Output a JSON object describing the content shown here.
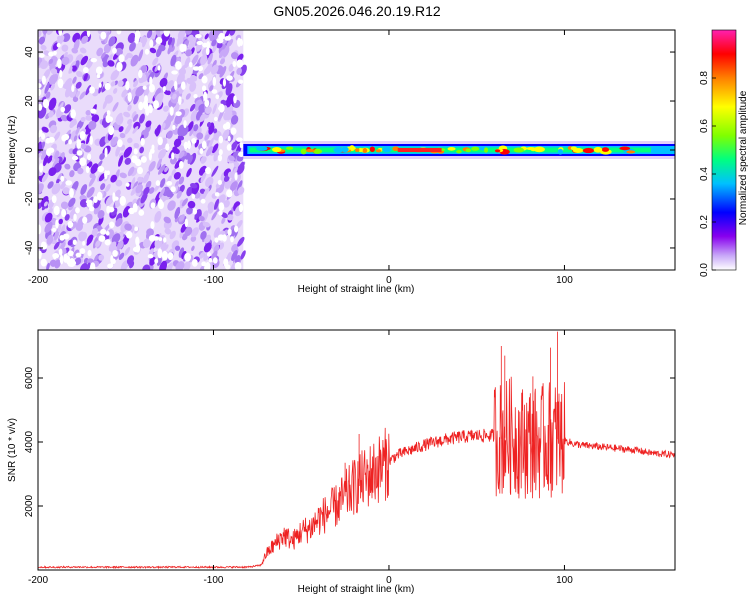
{
  "title": "GN05.2026.046.20.19.R12",
  "chart_data": [
    {
      "type": "heatmap",
      "name": "spectrogram",
      "xlabel": "Height of straight line (km)",
      "ylabel": "Frequency (Hz)",
      "xlim": [
        -200,
        163
      ],
      "ylim": [
        -49,
        49
      ],
      "xticks": [
        -200,
        -100,
        0,
        100
      ],
      "xtick_labels": [
        "-200",
        "-100",
        "0",
        "100"
      ],
      "yticks": [
        -40,
        -20,
        0,
        20,
        40
      ],
      "ytick_labels": [
        "-40",
        "-20",
        "0",
        "20",
        "40"
      ],
      "noise_region_km": [
        -200,
        -83
      ],
      "signal_region_km": [
        -83,
        163
      ],
      "signal_band_hz": [
        -3,
        3
      ],
      "colorbar": {
        "label": "Normalized spectral amplitude",
        "range": [
          0.0,
          1.0
        ],
        "ticks": [
          0.0,
          0.2,
          0.4,
          0.6,
          0.8
        ],
        "tick_labels": [
          "0.0",
          "0.2",
          "0.4",
          "0.6",
          "0.8"
        ],
        "colormap": [
          "#ffffff",
          "#c8a8f8",
          "#8800ee",
          "#0000ff",
          "#00c0ff",
          "#00ff80",
          "#80ff00",
          "#ffff00",
          "#ff8000",
          "#ff0000",
          "#ff20b0"
        ]
      }
    },
    {
      "type": "line",
      "name": "snr",
      "xlabel": "Height of straight line (km)",
      "ylabel": "SNR (10 * v/v)",
      "xlim": [
        -200,
        163
      ],
      "ylim": [
        0,
        7500
      ],
      "xticks": [
        -200,
        -100,
        0,
        100
      ],
      "xtick_labels": [
        "-200",
        "-100",
        "0",
        "100"
      ],
      "yticks": [
        2000,
        4000,
        6000
      ],
      "ytick_labels": [
        "2000",
        "4000",
        "6000"
      ],
      "color": "#ee2222",
      "series": [
        {
          "name": "SNR",
          "x": [
            -200,
            -190,
            -180,
            -170,
            -160,
            -150,
            -140,
            -130,
            -120,
            -110,
            -100,
            -90,
            -80,
            -73,
            -70,
            -65,
            -60,
            -55,
            -50,
            -45,
            -40,
            -35,
            -30,
            -25,
            -20,
            -15,
            -10,
            -5,
            0,
            5,
            10,
            20,
            30,
            40,
            50,
            60,
            64,
            70,
            75,
            80,
            85,
            90,
            95,
            100,
            105,
            110,
            120,
            130,
            140,
            150,
            163
          ],
          "y": [
            90,
            85,
            95,
            90,
            88,
            92,
            90,
            87,
            93,
            90,
            88,
            91,
            92,
            150,
            500,
            800,
            1100,
            900,
            1200,
            1300,
            1600,
            1800,
            2000,
            2300,
            2600,
            2800,
            3000,
            3200,
            3400,
            3600,
            3700,
            3900,
            4050,
            4150,
            4200,
            4200,
            4100,
            4200,
            4000,
            4050,
            3950,
            4100,
            4100,
            4050,
            3950,
            3900,
            3850,
            3800,
            3750,
            3650,
            3600
          ]
        }
      ],
      "spikes": [
        {
          "x": 64,
          "y": 7000
        },
        {
          "x": 96,
          "y": 7450
        },
        {
          "x": 66,
          "y": 6700
        },
        {
          "x": 82,
          "y": 6050
        },
        {
          "x": 92,
          "y": 6950
        },
        {
          "x": -17,
          "y": 4250
        },
        {
          "x": -25,
          "y": 3350
        }
      ]
    }
  ]
}
